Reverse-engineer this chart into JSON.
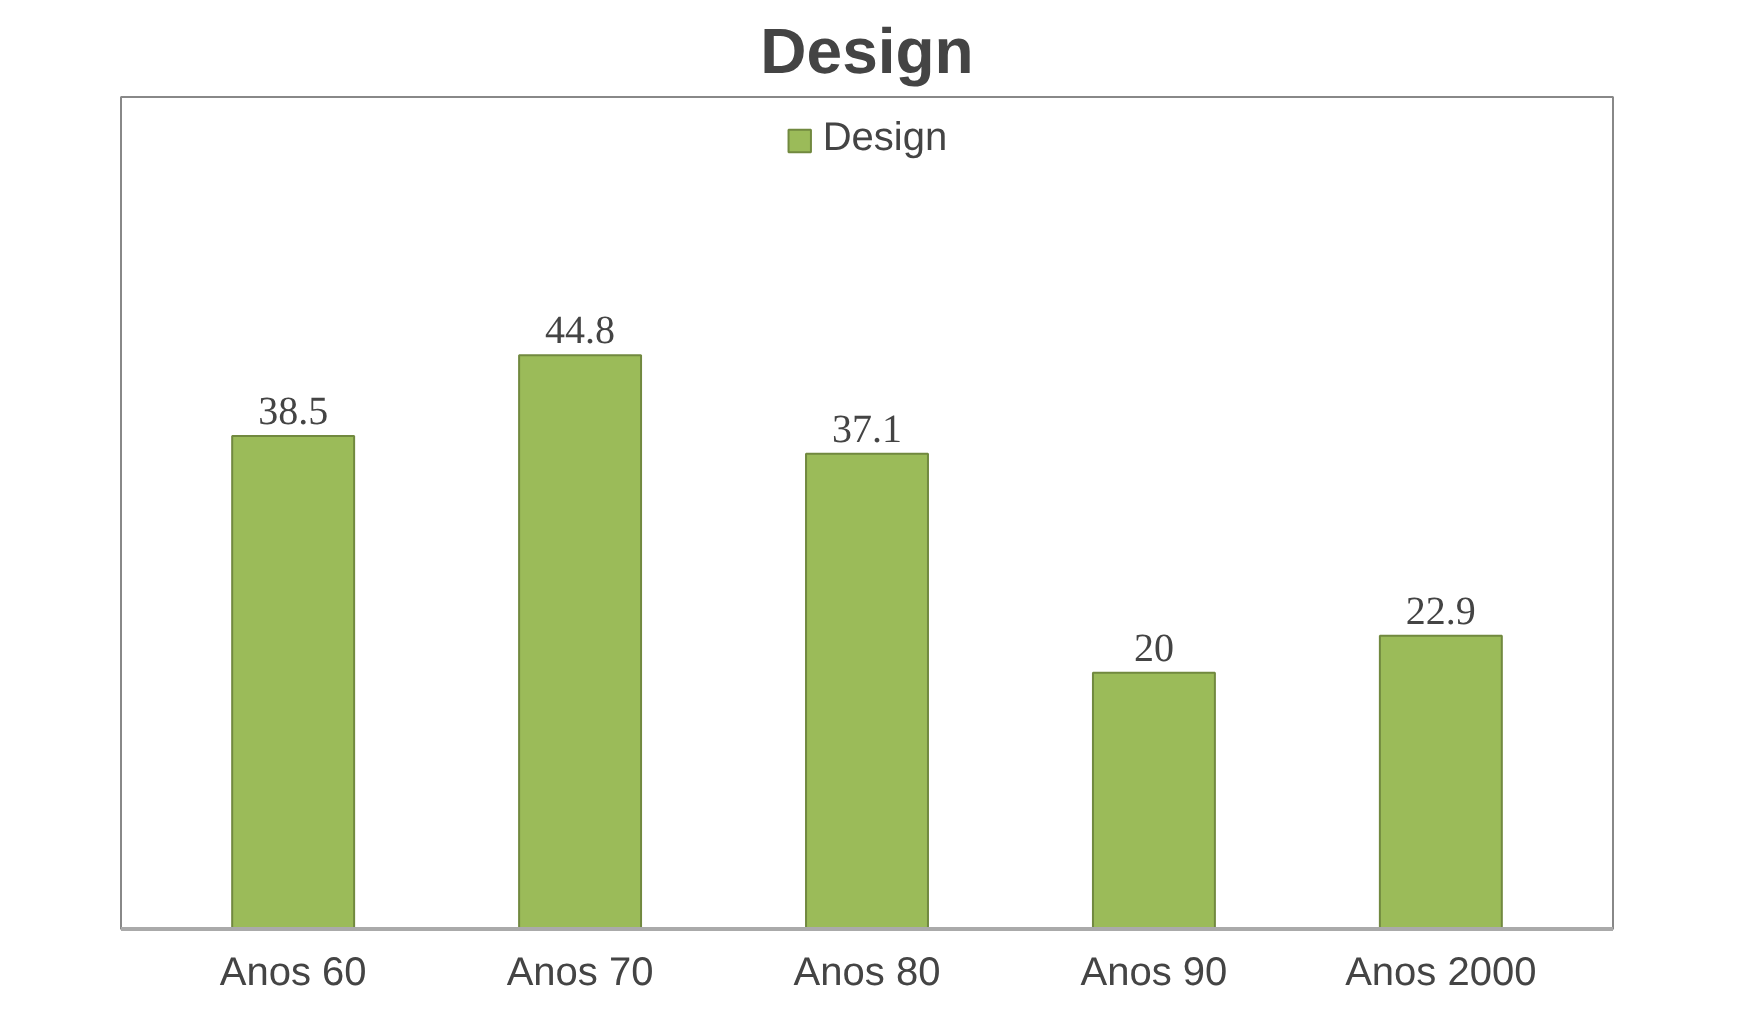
{
  "chart_data": {
    "type": "bar",
    "title": "Design",
    "categories": [
      "Anos 60",
      "Anos 70",
      "Anos 80",
      "Anos 90",
      "Anos 2000"
    ],
    "series": [
      {
        "name": "Design",
        "color": "#9bbb59",
        "values": [
          38.5,
          44.8,
          37.1,
          20,
          22.9
        ]
      }
    ],
    "data_labels": true,
    "legend": "top",
    "grid": false
  }
}
